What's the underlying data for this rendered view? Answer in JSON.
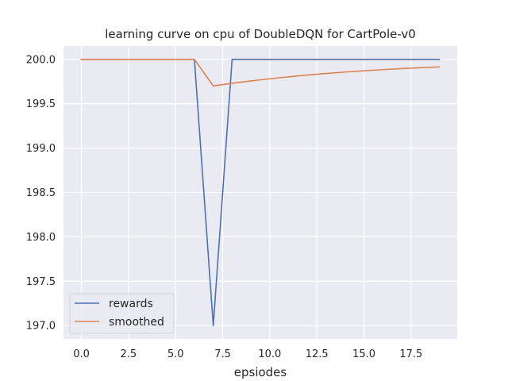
{
  "chart_data": {
    "type": "line",
    "title": "learning curve on cpu of DoubleDQN for CartPole-v0",
    "xlabel": "epsiodes",
    "ylabel": "",
    "xlim": [
      -0.95,
      19.95
    ],
    "ylim": [
      196.85,
      200.15
    ],
    "xticks": [
      0,
      2.5,
      5,
      7.5,
      10,
      12.5,
      15,
      17.5
    ],
    "xtick_labels": [
      "0.0",
      "2.5",
      "5.0",
      "7.5",
      "10.0",
      "12.5",
      "15.0",
      "17.5"
    ],
    "yticks": [
      197.0,
      197.5,
      198.0,
      198.5,
      199.0,
      199.5,
      200.0
    ],
    "ytick_labels": [
      "197.0",
      "197.5",
      "198.0",
      "198.5",
      "199.0",
      "199.5",
      "200.0"
    ],
    "grid": true,
    "legend_position": "lower-left",
    "x": [
      0,
      1,
      2,
      3,
      4,
      5,
      6,
      7,
      8,
      9,
      10,
      11,
      12,
      13,
      14,
      15,
      16,
      17,
      18,
      19
    ],
    "series": [
      {
        "name": "rewards",
        "color": "#4c72b0",
        "values": [
          200,
          200,
          200,
          200,
          200,
          200,
          200,
          197,
          200,
          200,
          200,
          200,
          200,
          200,
          200,
          200,
          200,
          200,
          200,
          200
        ]
      },
      {
        "name": "smoothed",
        "color": "#dd8452",
        "values": [
          200,
          200,
          200,
          200,
          200,
          200,
          200,
          199.7,
          199.73,
          199.757,
          199.781,
          199.803,
          199.823,
          199.841,
          199.857,
          199.871,
          199.884,
          199.896,
          199.906,
          199.915
        ]
      }
    ],
    "colors": {
      "plot_background": "#eaeaf2",
      "grid": "#ffffff",
      "text": "#262626"
    }
  }
}
